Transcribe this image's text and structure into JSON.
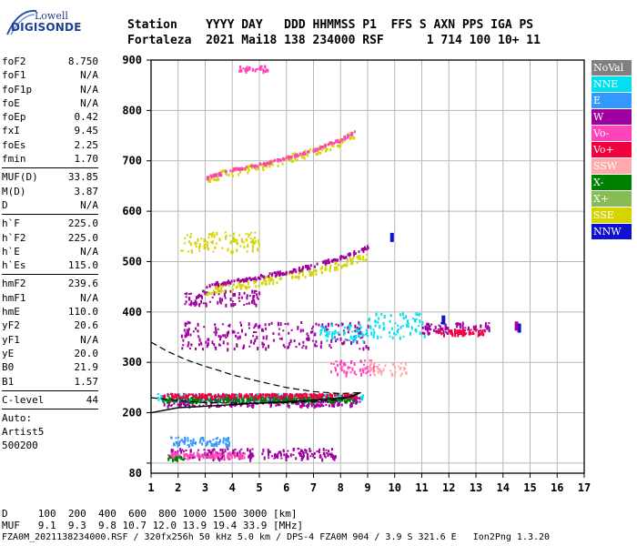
{
  "logo": {
    "top": "Lowell",
    "main": "DIGISONDE"
  },
  "header": {
    "line1": "Station    YYYY DAY   DDD HHMMSS P1  FFS S AXN PPS IGA PS",
    "line2": "Fortaleza  2021 Mai18 138 234000 RSF      1 714 100 10+ 11"
  },
  "params": [
    [
      {
        "name": "foF2",
        "value": "8.750"
      },
      {
        "name": "foF1",
        "value": "N/A"
      },
      {
        "name": "foF1p",
        "value": "N/A"
      },
      {
        "name": "foE",
        "value": "N/A"
      },
      {
        "name": "foEp",
        "value": "0.42"
      },
      {
        "name": "fxI",
        "value": "9.45"
      },
      {
        "name": "foEs",
        "value": "2.25"
      },
      {
        "name": "fmin",
        "value": "1.70"
      }
    ],
    [
      {
        "name": "MUF(D)",
        "value": "33.85"
      },
      {
        "name": "M(D)",
        "value": "3.87"
      },
      {
        "name": "D",
        "value": "N/A"
      }
    ],
    [
      {
        "name": "h`F",
        "value": "225.0"
      },
      {
        "name": "h`F2",
        "value": "225.0"
      },
      {
        "name": "h`E",
        "value": "N/A"
      },
      {
        "name": "h`Es",
        "value": "115.0"
      }
    ],
    [
      {
        "name": "hmF2",
        "value": "239.6"
      },
      {
        "name": "hmF1",
        "value": "N/A"
      },
      {
        "name": "hmE",
        "value": "110.0"
      },
      {
        "name": "yF2",
        "value": "20.6"
      },
      {
        "name": "yF1",
        "value": "N/A"
      },
      {
        "name": "yE",
        "value": "20.0"
      },
      {
        "name": "B0",
        "value": "21.9"
      },
      {
        "name": "B1",
        "value": "1.57"
      }
    ],
    [
      {
        "name": "C-level",
        "value": "44"
      }
    ]
  ],
  "auto_lines": [
    "Auto:",
    "Artist5",
    "500200"
  ],
  "legend": [
    {
      "label": "NoVal",
      "color": "#808080"
    },
    {
      "label": "NNE",
      "color": "#00e0f0"
    },
    {
      "label": "E",
      "color": "#3399ff"
    },
    {
      "label": "W",
      "color": "#a000a0"
    },
    {
      "label": "Vo-",
      "color": "#ff44bb"
    },
    {
      "label": "Vo+",
      "color": "#f0003c"
    },
    {
      "label": "SSW",
      "color": "#ffaaaa"
    },
    {
      "label": "X-",
      "color": "#008000"
    },
    {
      "label": "X+",
      "color": "#88bb55"
    },
    {
      "label": "SSE",
      "color": "#d4d400"
    },
    {
      "label": "NNW",
      "color": "#1010d0"
    }
  ],
  "bottom": {
    "line1": "D     100  200  400  600  800 1000 1500 3000 [km]",
    "line2": "MUF   9.1  9.3  9.8 10.7 12.0 13.9 19.4 33.9 [MHz]",
    "line3": "FZA0M_2021138234000.RSF / 320fx256h 50 kHz 5.0 km / DPS-4 FZA0M 904 / 3.9 S 321.6 E   Ion2Png 1.3.20"
  },
  "chart_data": {
    "type": "scatter",
    "xlim": [
      1,
      17
    ],
    "ylim": [
      80,
      900
    ],
    "x_ticks": [
      1,
      2,
      3,
      4,
      5,
      6,
      7,
      8,
      9,
      10,
      11,
      12,
      13,
      14,
      15,
      16,
      17
    ],
    "y_ticks": [
      100,
      200,
      300,
      400,
      500,
      600,
      700,
      800,
      900
    ],
    "y_tick_labels": [
      "100",
      "200",
      "300",
      "400",
      "500",
      "600",
      "700",
      "800",
      "900"
    ],
    "bottom_left_label": "80",
    "grid": true,
    "legend_position": "right",
    "profile_curve": {
      "x": [
        1.0,
        2.0,
        3.0,
        4.0,
        5.0,
        6.0,
        7.0,
        7.5,
        8.0,
        8.4,
        8.75
      ],
      "y": [
        200,
        210,
        213,
        216,
        219,
        222,
        225,
        227,
        229,
        232,
        240
      ]
    },
    "dashed_curves": [
      {
        "x": [
          1.0,
          1.6,
          2.3,
          3.0,
          3.5,
          4.0,
          5.0,
          6.0,
          7.0,
          8.0,
          8.75
        ],
        "y": [
          340,
          322,
          305,
          292,
          284,
          275,
          262,
          250,
          242,
          238,
          240
        ]
      },
      {
        "x": [
          1.0,
          2.0,
          3.0,
          4.0,
          5.0,
          6.0,
          7.0,
          8.0,
          8.75
        ],
        "y": [
          230,
          224,
          220,
          219,
          219,
          220,
          222,
          226,
          240
        ]
      }
    ],
    "traces": [
      {
        "color": "#a000a0",
        "x_range": [
          1.7,
          7.8
        ],
        "y": 120,
        "thickness": 12
      },
      {
        "color": "#3399ff",
        "x_range": [
          1.7,
          4.0
        ],
        "y": 144,
        "thickness": 10
      },
      {
        "color": "#ff44bb",
        "x_range": [
          1.6,
          4.5
        ],
        "y": 118,
        "thickness": 6
      },
      {
        "color": "#008000",
        "x_range": [
          1.6,
          2.2
        ],
        "y": 112,
        "thickness": 4
      },
      {
        "color": "#00e0f0",
        "x_range": [
          1.2,
          8.8
        ],
        "y": 232,
        "thickness": 8
      },
      {
        "color": "#a000a0",
        "x_range": [
          1.4,
          8.7
        ],
        "y": 224,
        "thickness": 10
      },
      {
        "color": "#008000",
        "x_range": [
          1.4,
          8.5
        ],
        "y": 228,
        "thickness": 5
      },
      {
        "color": "#f0003c",
        "x_range": [
          1.4,
          8.6
        ],
        "y": 236,
        "thickness": 4
      },
      {
        "color": "#ff44bb",
        "x_range": [
          7.6,
          9.2
        ],
        "y": 290,
        "thickness": 18
      },
      {
        "color": "#a000a0",
        "x_range": [
          2.1,
          9.0
        ],
        "y": 355,
        "thickness": 30
      },
      {
        "color": "#00e0f0",
        "x_range": [
          9.0,
          11.1
        ],
        "y": 375,
        "thickness": 28
      },
      {
        "color": "#00e0f0",
        "x_range": [
          7.2,
          9.0
        ],
        "y": 360,
        "thickness": 20
      },
      {
        "color": "#ffaaaa",
        "x_range": [
          9.0,
          10.4
        ],
        "y": 290,
        "thickness": 16
      },
      {
        "color": "#a000a0",
        "x_range": [
          11.0,
          13.5
        ],
        "y": 370,
        "thickness": 12
      },
      {
        "color": "#f0003c",
        "x_range": [
          11.5,
          13.3
        ],
        "y": 362,
        "thickness": 6
      },
      {
        "color": "#a000a0",
        "x_range": [
          2.2,
          5.0
        ],
        "y": 430,
        "thickness": 16
      },
      {
        "color": "#d4d400",
        "x_range": [
          2.0,
          5.0
        ],
        "y": 540,
        "thickness": 22
      },
      {
        "color": "#ff44bb",
        "x_range": [
          4.2,
          5.3
        ],
        "y": 885,
        "thickness": 6
      }
    ],
    "curved_traces": [
      {
        "color": "#d4d400",
        "x": [
          3.0,
          4.0,
          5.0,
          6.0,
          7.0,
          8.0,
          8.5
        ],
        "y": [
          665,
          680,
          690,
          705,
          720,
          740,
          755
        ],
        "thickness": 9
      },
      {
        "color": "#ff44bb",
        "x": [
          3.0,
          4.0,
          5.0,
          6.0,
          7.0,
          8.0,
          8.5
        ],
        "y": [
          668,
          684,
          694,
          708,
          724,
          744,
          760
        ],
        "thickness": 3
      },
      {
        "color": "#d4d400",
        "x": [
          3.0,
          4.0,
          5.0,
          6.0,
          7.0,
          8.0,
          9.0
        ],
        "y": [
          445,
          452,
          462,
          472,
          482,
          497,
          515
        ],
        "thickness": 9
      },
      {
        "color": "#a000a0",
        "x": [
          3.0,
          4.0,
          5.0,
          6.0,
          7.0,
          8.0,
          9.0
        ],
        "y": [
          455,
          462,
          472,
          482,
          494,
          510,
          530
        ],
        "thickness": 4
      }
    ],
    "blocks": [
      {
        "color": "#1010d0",
        "x": 9.9,
        "y": 548
      },
      {
        "color": "#1010d0",
        "x": 14.6,
        "y": 368
      },
      {
        "color": "#a000a0",
        "x": 14.5,
        "y": 372
      },
      {
        "color": "#1010d0",
        "x": 11.8,
        "y": 384
      }
    ]
  }
}
